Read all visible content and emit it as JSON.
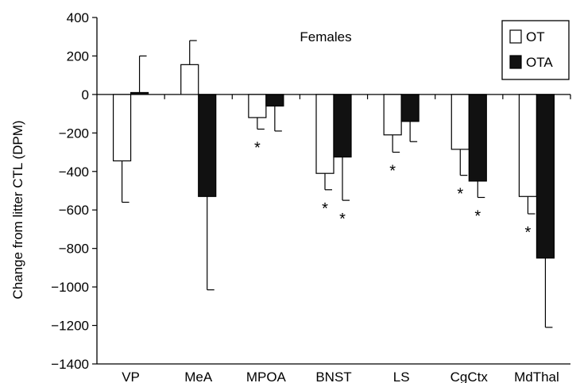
{
  "chart_data": {
    "type": "bar",
    "title": "Females",
    "ylabel": "Change from litter CTL (DPM)",
    "xlabel": "",
    "ylim": [
      -1400,
      400
    ],
    "yticks": [
      400,
      200,
      0,
      -200,
      -400,
      -600,
      -800,
      -1000,
      -1200,
      -1400
    ],
    "ytick_labels": [
      "400",
      "200",
      "0",
      "−200",
      "−400",
      "−600",
      "−800",
      "−1000",
      "−1200",
      "−1400"
    ],
    "categories": [
      "VP",
      "MeA",
      "MPOA",
      "BNST",
      "LS",
      "CgCtx",
      "MdThal"
    ],
    "series": [
      {
        "name": "OT",
        "color": "#ffffff",
        "values": [
          -345,
          155,
          -120,
          -410,
          -210,
          -285,
          -530
        ],
        "error": [
          215,
          125,
          60,
          85,
          90,
          135,
          90
        ],
        "significant": [
          false,
          false,
          true,
          true,
          true,
          true,
          true
        ]
      },
      {
        "name": "OTA",
        "color": "#111111",
        "values": [
          10,
          -530,
          -60,
          -325,
          -140,
          -450,
          -850
        ],
        "error": [
          190,
          485,
          130,
          225,
          105,
          85,
          360
        ],
        "significant": [
          false,
          false,
          false,
          true,
          false,
          true,
          false
        ]
      }
    ],
    "significance_marker": "*",
    "legend_position": "top-right",
    "grid": false
  }
}
